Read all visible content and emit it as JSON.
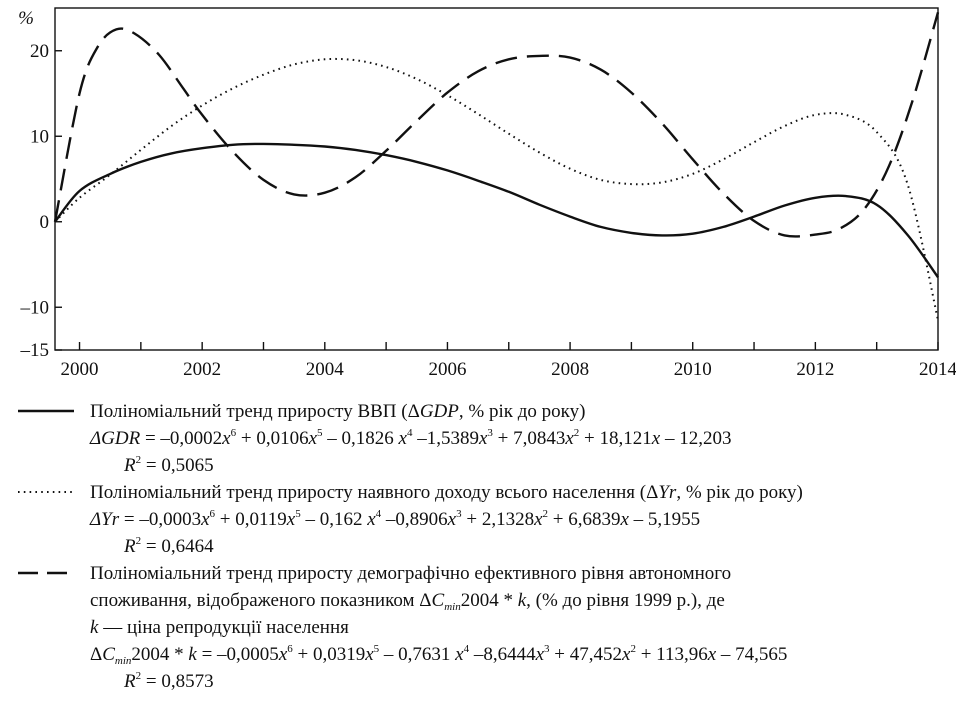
{
  "chart_data": {
    "type": "line",
    "ylabel": "%",
    "xlim": [
      1999.6,
      2014.0
    ],
    "ylim": [
      -15,
      25
    ],
    "x_ticks": [
      2000,
      2002,
      2004,
      2006,
      2008,
      2010,
      2012,
      2014
    ],
    "y_ticks": [
      -15,
      -10,
      0,
      10,
      20
    ],
    "y_tick_labels": [
      "–15",
      "–10",
      "0",
      "10",
      "20"
    ],
    "series": [
      {
        "name": "Поліноміальний тренд приросту ВВП (ΔGDP, % рік до року)",
        "style": "solid",
        "x": [
          1999.6,
          2000.0,
          2000.5,
          2001.0,
          2001.5,
          2002.0,
          2002.5,
          2003.0,
          2003.5,
          2004.0,
          2004.5,
          2005.0,
          2005.5,
          2006.0,
          2006.5,
          2007.0,
          2007.5,
          2008.0,
          2008.5,
          2009.0,
          2009.5,
          2010.0,
          2010.5,
          2011.0,
          2011.5,
          2012.0,
          2012.5,
          2013.0,
          2013.5,
          2014.0
        ],
        "y": [
          0,
          3.6,
          5.6,
          7.0,
          8.0,
          8.6,
          9.0,
          9.1,
          9.0,
          8.8,
          8.4,
          7.8,
          7.0,
          6.0,
          4.8,
          3.5,
          2.0,
          0.6,
          -0.6,
          -1.3,
          -1.6,
          -1.4,
          -0.6,
          0.6,
          1.9,
          2.8,
          3.0,
          2.0,
          -1.5,
          -6.5
        ]
      },
      {
        "name": "Поліноміальний тренд приросту наявного доходу всього населення (ΔYr, % рік до року)",
        "style": "dotted",
        "x": [
          1999.6,
          2000.0,
          2000.5,
          2001.0,
          2001.5,
          2002.0,
          2002.5,
          2003.0,
          2003.5,
          2004.0,
          2004.5,
          2005.0,
          2005.5,
          2006.0,
          2006.5,
          2007.0,
          2007.5,
          2008.0,
          2008.5,
          2009.0,
          2009.5,
          2010.0,
          2010.5,
          2011.0,
          2011.5,
          2012.0,
          2012.5,
          2013.0,
          2013.5,
          2014.0
        ],
        "y": [
          0,
          2.8,
          5.5,
          8.4,
          11.2,
          13.6,
          15.6,
          17.2,
          18.4,
          19.0,
          18.9,
          18.1,
          16.7,
          14.8,
          12.6,
          10.3,
          8.1,
          6.2,
          4.9,
          4.4,
          4.6,
          5.6,
          7.3,
          9.3,
          11.2,
          12.5,
          12.5,
          10.5,
          4.5,
          -11.5
        ]
      },
      {
        "name": "Поліноміальний тренд приросту демографічно ефективного рівня автономного споживання",
        "style": "dashed",
        "x": [
          1999.6,
          2000.0,
          2000.3,
          2000.6,
          2000.9,
          2001.3,
          2001.7,
          2002.0,
          2002.5,
          2003.0,
          2003.5,
          2004.0,
          2004.5,
          2005.0,
          2005.5,
          2006.0,
          2006.5,
          2007.0,
          2007.5,
          2008.0,
          2008.5,
          2009.0,
          2009.5,
          2010.0,
          2010.5,
          2011.0,
          2011.5,
          2012.0,
          2012.4,
          2012.8,
          2013.2,
          2013.6,
          2014.0
        ],
        "y": [
          0,
          15.0,
          20.5,
          22.5,
          22.0,
          19.5,
          15.5,
          12.5,
          8.2,
          4.9,
          3.2,
          3.4,
          5.2,
          8.3,
          11.8,
          15.1,
          17.6,
          19.0,
          19.4,
          19.2,
          17.8,
          15.1,
          11.5,
          7.3,
          3.3,
          0.1,
          -1.6,
          -1.5,
          -0.8,
          1.5,
          6.5,
          14.5,
          24.5
        ]
      }
    ]
  },
  "legend": {
    "gdp_title": "Поліноміальний тренд приросту ВВП (Δ",
    "gdp_title_var": "GDP",
    "gdp_title_rest": ", % рік до року)",
    "gdp_eq_lhs": "ΔGDR",
    "gdp_eq": [
      " = –0,0002",
      "x",
      "6",
      " + 0,0106",
      "x",
      "5",
      " – 0,1826 ",
      "x",
      "4",
      " –1,5389",
      "x",
      "3",
      " + 7,0843",
      "x",
      "2",
      " + 18,121",
      "x",
      " – 12,203"
    ],
    "gdp_r2": " = 0,5065",
    "yr_title": "Поліноміальний тренд приросту наявного доходу всього населення (Δ",
    "yr_title_var": "Yr",
    "yr_title_rest": ", % рік до року)",
    "yr_eq_lhs": "ΔYr",
    "yr_eq": [
      " = –0,0003",
      "x",
      "6",
      " + 0,0119",
      "x",
      "5",
      " – 0,162 ",
      "x",
      "4",
      " –0,8906",
      "x",
      "3",
      " + 2,1328",
      "x",
      "2",
      " + 6,6839",
      "x",
      " – 5,1955"
    ],
    "yr_r2": " = 0,6464",
    "c_title_1": "Поліноміальний тренд приросту демографічно ефективного рівня автономного",
    "c_title_2a": "споживання, відображеного показником Δ",
    "c_title_2b": "C",
    "c_title_2c": "min",
    "c_title_2d": "2004 * ",
    "c_title_2e": "k",
    "c_title_2f": ", (% до рівня 1999 р.), де",
    "c_title_3a": "k",
    "c_title_3b": " — ціна репродукції населення",
    "c_eq_a": "Δ",
    "c_eq_b": "C",
    "c_eq_c": "min",
    "c_eq_d": "2004 * ",
    "c_eq_e": "k",
    "c_eq": [
      " = –0,0005",
      "x",
      "6",
      " + 0,0319",
      "x",
      "5",
      " – 0,7631 ",
      "x",
      "4",
      " –8,6444",
      "x",
      "3",
      " + 47,452",
      "x",
      "2",
      " + 113,96",
      "x",
      " – 74,565"
    ],
    "c_r2": " = 0,8573",
    "r2_label": "R",
    "r2_sup": "2"
  }
}
